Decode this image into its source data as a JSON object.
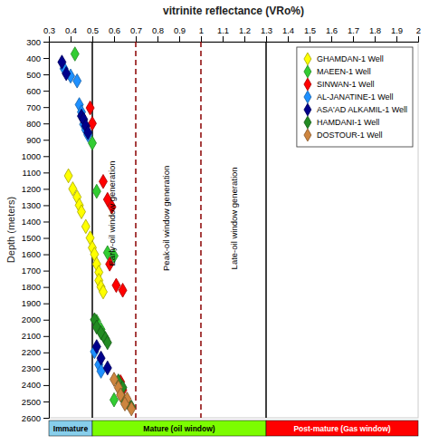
{
  "chart_data": {
    "type": "scatter",
    "title": "vitrinite reflectance (VRo%)",
    "ylabel": "Depth (meters)",
    "xlim": [
      0.3,
      2
    ],
    "ylim": [
      2600,
      300
    ],
    "xticks": [
      0.3,
      0.4,
      0.5,
      0.6,
      0.7,
      0.8,
      0.9,
      1,
      1.1,
      1.2,
      1.3,
      1.4,
      1.5,
      1.6,
      1.7,
      1.8,
      1.9,
      2
    ],
    "yticks": [
      300,
      400,
      500,
      600,
      700,
      800,
      900,
      1000,
      1100,
      1200,
      1300,
      1400,
      1500,
      1600,
      1700,
      1800,
      1900,
      2000,
      2100,
      2200,
      2300,
      2400,
      2500,
      2600
    ],
    "grid": false,
    "legend": "upper right",
    "marker": "diamond",
    "vlines": [
      {
        "x": 0.5,
        "color": "black",
        "line_style": "solid"
      },
      {
        "x": 0.7,
        "color": "darkred",
        "line_style": "dashed"
      },
      {
        "x": 1,
        "color": "darkred",
        "line_style": "dashed"
      },
      {
        "x": 1.3,
        "color": "black",
        "line_style": "solid"
      }
    ],
    "annotations": [
      {
        "text": "Early-oil window generation",
        "x": 0.595,
        "y": 1350
      },
      {
        "text": "Peak-oil window generation",
        "x": 0.845,
        "y": 1380
      },
      {
        "text": "Late-oil window generation",
        "x": 1.155,
        "y": 1380
      }
    ],
    "bands": [
      {
        "label": "Immature",
        "xmin": 0.3,
        "xmax": 0.5,
        "color": "#87CEEB"
      },
      {
        "label": "Mature (oil window)",
        "xmin": 0.5,
        "xmax": 1.3,
        "color": "#7CFC00"
      },
      {
        "label": "Post-mature (Gas window)",
        "xmin": 1.3,
        "xmax": 2,
        "color": "#FF0000"
      }
    ],
    "series": [
      {
        "name": "GHAMDAN-1 Well",
        "color": "#FFFF00",
        "x": [
          0.39,
          0.41,
          0.43,
          0.44,
          0.45,
          0.47,
          0.49,
          0.5,
          0.51,
          0.52,
          0.53,
          0.53,
          0.54,
          0.55
        ],
        "values": [
          1120,
          1200,
          1250,
          1300,
          1340,
          1430,
          1500,
          1560,
          1600,
          1660,
          1710,
          1760,
          1800,
          1830
        ]
      },
      {
        "name": "MAEEN-1 Well",
        "color": "#32CD32",
        "x": [
          0.42,
          0.5,
          0.52,
          0.57,
          0.6,
          0.52,
          0.54,
          0.55,
          0.6
        ],
        "values": [
          375,
          920,
          1215,
          1590,
          1610,
          2010,
          2060,
          2095,
          2490
        ]
      },
      {
        "name": "SINWAN-1 Well",
        "color": "#FF0000",
        "x": [
          0.49,
          0.5,
          0.55,
          0.57,
          0.59,
          0.58,
          0.61,
          0.64,
          0.63,
          0.64
        ],
        "values": [
          705,
          800,
          1155,
          1265,
          1310,
          1660,
          1790,
          1820,
          2380,
          2430
        ]
      },
      {
        "name": "AL-JANATINE-1 Well",
        "color": "#1E90FF",
        "x": [
          0.37,
          0.4,
          0.43,
          0.44,
          0.45,
          0.46,
          0.47,
          0.48,
          0.51,
          0.53,
          0.54
        ],
        "values": [
          465,
          510,
          540,
          685,
          730,
          805,
          840,
          870,
          2195,
          2275,
          2315
        ]
      },
      {
        "name": "ASA'AD ALKAMIL-1 Well",
        "color": "#00008B",
        "x": [
          0.36,
          0.38,
          0.45,
          0.46,
          0.47,
          0.48,
          0.52,
          0.54,
          0.57
        ],
        "values": [
          425,
          495,
          755,
          775,
          815,
          855,
          2165,
          2235,
          2295
        ]
      },
      {
        "name": "HAMDANI-1 Well",
        "color": "#228B22",
        "x": [
          0.51,
          0.52,
          0.54,
          0.56,
          0.57,
          0.62,
          0.64,
          0.64,
          0.66,
          0.68
        ],
        "values": [
          2000,
          2045,
          2080,
          2115,
          2140,
          2375,
          2415,
          2480,
          2505,
          2535
        ]
      },
      {
        "name": "DOSTOUR-1 Well",
        "color": "#CD853F",
        "x": [
          0.6,
          0.62,
          0.63,
          0.66,
          0.65,
          0.68
        ],
        "values": [
          2365,
          2415,
          2460,
          2485,
          2515,
          2545
        ]
      }
    ]
  }
}
